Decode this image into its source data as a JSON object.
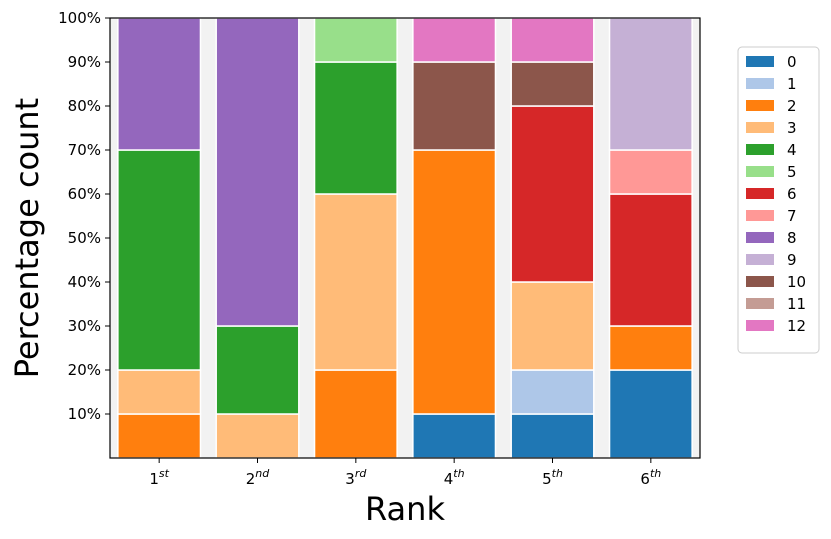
{
  "chart_data": {
    "type": "bar",
    "stacked": true,
    "xlabel": "Rank",
    "ylabel": "Percentage count",
    "ylim": [
      0,
      100
    ],
    "categories": [
      {
        "base": "1",
        "sup": "st"
      },
      {
        "base": "2",
        "sup": "nd"
      },
      {
        "base": "3",
        "sup": "rd"
      },
      {
        "base": "4",
        "sup": "th"
      },
      {
        "base": "5",
        "sup": "th"
      },
      {
        "base": "6",
        "sup": "th"
      }
    ],
    "y_ticks": [
      {
        "value": 10,
        "label": "10%"
      },
      {
        "value": 20,
        "label": "20%"
      },
      {
        "value": 30,
        "label": "30%"
      },
      {
        "value": 40,
        "label": "40%"
      },
      {
        "value": 50,
        "label": "50%"
      },
      {
        "value": 60,
        "label": "60%"
      },
      {
        "value": 70,
        "label": "70%"
      },
      {
        "value": 80,
        "label": "80%"
      },
      {
        "value": 90,
        "label": "90%"
      },
      {
        "value": 100,
        "label": "100%"
      }
    ],
    "series": [
      {
        "name": "0",
        "color": "#1f77b4",
        "values": [
          0,
          0,
          0,
          10,
          10,
          20
        ]
      },
      {
        "name": "1",
        "color": "#aec7e8",
        "values": [
          0,
          0,
          0,
          0,
          10,
          0
        ]
      },
      {
        "name": "2",
        "color": "#ff7f0e",
        "values": [
          10,
          0,
          20,
          60,
          0,
          10
        ]
      },
      {
        "name": "3",
        "color": "#ffbb78",
        "values": [
          10,
          10,
          40,
          0,
          20,
          0
        ]
      },
      {
        "name": "4",
        "color": "#2ca02c",
        "values": [
          50,
          20,
          30,
          0,
          0,
          0
        ]
      },
      {
        "name": "5",
        "color": "#98df8a",
        "values": [
          0,
          0,
          10,
          0,
          0,
          0
        ]
      },
      {
        "name": "6",
        "color": "#d62728",
        "values": [
          0,
          0,
          0,
          0,
          40,
          30
        ]
      },
      {
        "name": "7",
        "color": "#ff9896",
        "values": [
          0,
          0,
          0,
          0,
          0,
          10
        ]
      },
      {
        "name": "8",
        "color": "#9467bd",
        "values": [
          30,
          70,
          0,
          0,
          0,
          0
        ]
      },
      {
        "name": "9",
        "color": "#c5b0d5",
        "values": [
          0,
          0,
          0,
          0,
          0,
          30
        ]
      },
      {
        "name": "10",
        "color": "#8c564b",
        "values": [
          0,
          0,
          0,
          20,
          10,
          0
        ]
      },
      {
        "name": "11",
        "color": "#c49c94",
        "values": [
          0,
          0,
          0,
          0,
          0,
          0
        ]
      },
      {
        "name": "12",
        "color": "#e377c2",
        "values": [
          0,
          0,
          0,
          10,
          10,
          0
        ]
      }
    ],
    "background_color": "#f2f2f2",
    "legend_position": "right"
  }
}
